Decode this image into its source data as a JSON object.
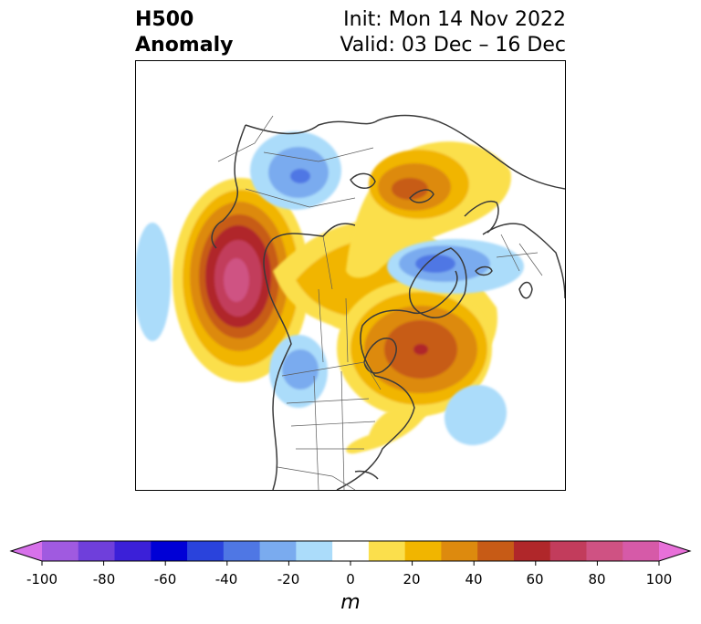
{
  "title": {
    "left_line1": "H500",
    "left_line2": "Anomaly",
    "init": "Init: Mon 14 Nov 2022",
    "valid": "Valid: 03 Dec – 16 Dec"
  },
  "colorbar": {
    "ticks": [
      "-100",
      "-80",
      "-60",
      "-40",
      "-20",
      "0",
      "20",
      "40",
      "60",
      "80",
      "100"
    ],
    "unit": "m",
    "colors": [
      "#d771ea",
      "#a05ae0",
      "#6f3fdb",
      "#3b20d8",
      "#0000d6",
      "#2a43dc",
      "#4f77e4",
      "#7aabef",
      "#abdcfa",
      "#ffffff",
      "#fbdf4c",
      "#f1b500",
      "#dd8a0e",
      "#c75b16",
      "#b0272a",
      "#c23c5c",
      "#cf5283",
      "#d65aa8",
      "#e870d9"
    ]
  },
  "map": {
    "projection": "north polar stereographic",
    "anomaly_colors": {
      "pos10": "#fbdf4c",
      "pos20": "#f1b500",
      "pos30": "#dd8a0e",
      "pos40": "#c75b16",
      "pos50": "#b0272a",
      "pos60": "#c23c5c",
      "pos70": "#cf5283",
      "neg10": "#abdcfa",
      "neg20": "#7aabef",
      "neg30": "#4f77e4"
    }
  }
}
